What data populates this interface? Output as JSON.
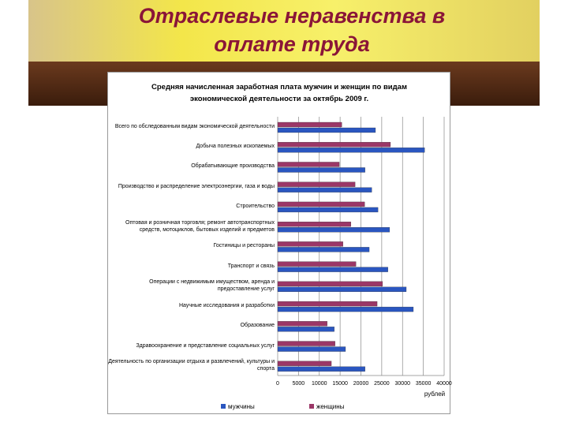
{
  "heading": "Отраслевые неравенства в оплате труда",
  "chart_data": {
    "type": "hbar",
    "title": "Средняя начисленная заработная плата мужчин и женщин по видам экономической деятельности за октябрь 2009 г.",
    "x_label": "рублей",
    "categories": [
      "Всего по обследованным видам экономической деятельности",
      "Добыча полезных ископаемых",
      "Обрабатывающие производства",
      "Производство и распределение электроэнергии, газа и воды",
      "Строительство",
      "Оптовая и розничная торговля; ремонт автотранспортных средств, мотоциклов, бытовых изделий и предметов",
      "Гостиницы и рестораны",
      "Транспорт и связь",
      "Операции с недвижимым имуществом, аренда и предоставление услуг",
      "Научные исследования и разработки",
      "Образование",
      "Здравоохранение и представление социальных услуг",
      "Деятельность по организации отдыха и развлечений, культуры и спорта"
    ],
    "series": [
      {
        "name": "мужчины",
        "color": "#2a56c0",
        "values": [
          23500,
          35300,
          21000,
          22600,
          24100,
          26900,
          22000,
          26500,
          30900,
          32600,
          13600,
          16300,
          21000
        ]
      },
      {
        "name": "женщины",
        "color": "#9b3767",
        "values": [
          15400,
          27100,
          14800,
          18600,
          20900,
          17600,
          15700,
          18800,
          25200,
          23900,
          11900,
          13800,
          12900
        ]
      }
    ],
    "xlim": [
      0,
      40000
    ],
    "xticks": [
      0,
      5000,
      10000,
      15000,
      20000,
      25000,
      30000,
      35000,
      40000
    ],
    "grid": true,
    "legend": "bottom"
  }
}
